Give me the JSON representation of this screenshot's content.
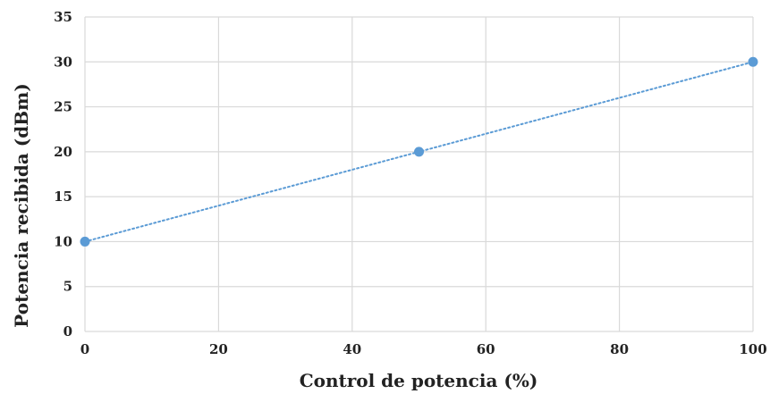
{
  "chart_data": {
    "type": "scatter",
    "title": "",
    "xlabel": "Control de potencia (%)",
    "ylabel": "Potencia recibida (dBm)",
    "xlim": [
      0,
      100
    ],
    "ylim": [
      0,
      35
    ],
    "x_ticks": [
      "0",
      "20",
      "40",
      "60",
      "80",
      "100"
    ],
    "y_ticks": [
      "0",
      "5",
      "10",
      "15",
      "20",
      "25",
      "30",
      "35"
    ],
    "grid": true,
    "legend": "none",
    "series": [
      {
        "points": [
          {
            "x": 0,
            "y": 10
          },
          {
            "x": 50,
            "y": 20
          },
          {
            "x": 100,
            "y": 30
          }
        ],
        "marker_color": "#5b9bd5",
        "trendline": {
          "type": "linear",
          "style": "dotted",
          "color": "#5b9bd5"
        }
      }
    ]
  }
}
